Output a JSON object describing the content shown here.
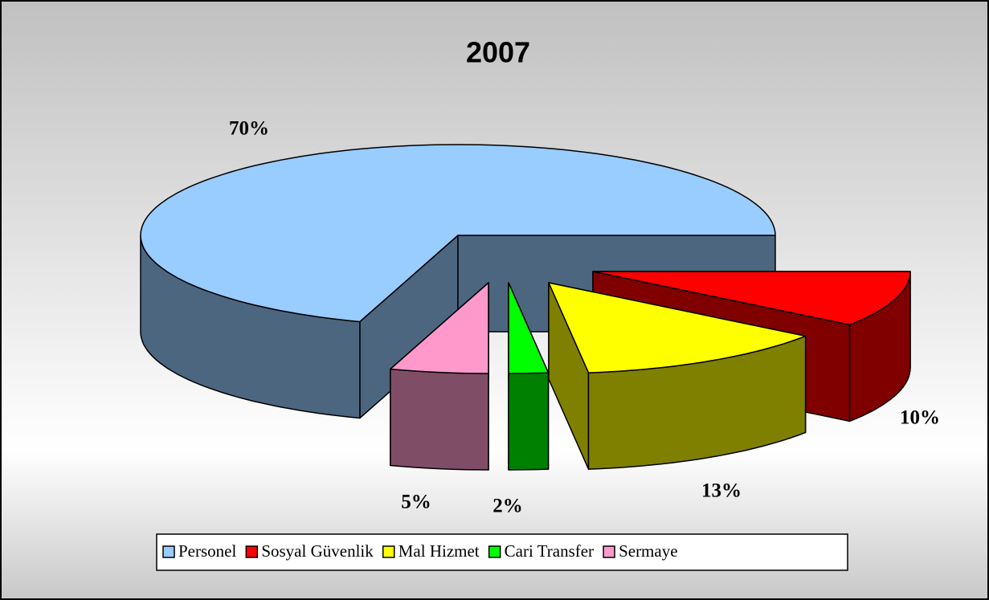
{
  "chart_data": {
    "type": "pie3d",
    "title": "2007",
    "categories": [
      "Personel",
      "Sosyal Güvenlik",
      "Mal Hizmet",
      "Cari Transfer",
      "Sermaye"
    ],
    "values": [
      70,
      10,
      13,
      2,
      5
    ],
    "value_labels": [
      "70%",
      "10%",
      "13%",
      "2%",
      "5%"
    ],
    "colors": [
      "#99ccff",
      "#ff0000",
      "#ffff00",
      "#00ff00",
      "#ff99cc"
    ],
    "side_colors": [
      "#4d6680",
      "#800000",
      "#808000",
      "#008000",
      "#804d66"
    ],
    "legend": "bottom"
  }
}
